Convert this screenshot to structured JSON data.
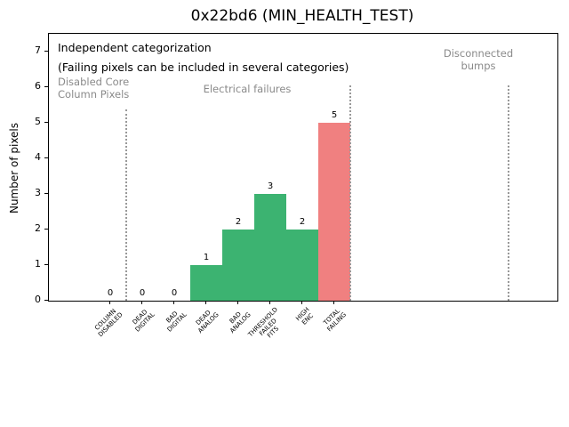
{
  "chart_data": {
    "type": "bar",
    "title": "0x22bd6 (MIN_HEALTH_TEST)",
    "xlabel": "",
    "ylabel": "Number of pixels",
    "categories": [
      "COLUMN\nDISABLED",
      "DEAD\nDIGITAL",
      "BAD\nDIGITAL",
      "DEAD\nANALOG",
      "BAD\nANALOG",
      "THRESHOLD\nFAILED\nFITS",
      "HIGH\nENC",
      "TOTAL\nFAILING"
    ],
    "values": [
      0,
      0,
      0,
      1,
      2,
      3,
      2,
      5
    ],
    "bar_colors": [
      "#3cb371",
      "#3cb371",
      "#3cb371",
      "#3cb371",
      "#3cb371",
      "#3cb371",
      "#3cb371",
      "#f08080"
    ],
    "yticks": [
      0,
      1,
      2,
      3,
      4,
      5,
      6,
      7
    ],
    "ylim": [
      0,
      7.5
    ],
    "grid": false,
    "legend": null,
    "separator_lines_x": [
      0.5,
      7.5,
      12.45
    ]
  },
  "annotations": {
    "independent": "Independent categorization",
    "failing_note": "(Failing pixels can be included in several categories)",
    "region_disabled": "Disabled Core\nColumn Pixels",
    "region_electrical": "Electrical failures",
    "region_disconnected": "Disconnected\nbumps"
  },
  "colors": {
    "bar_green": "#3cb371",
    "bar_red": "#f08080",
    "annotation_gray": "#8a8a8a",
    "separator_gray": "#999999"
  }
}
